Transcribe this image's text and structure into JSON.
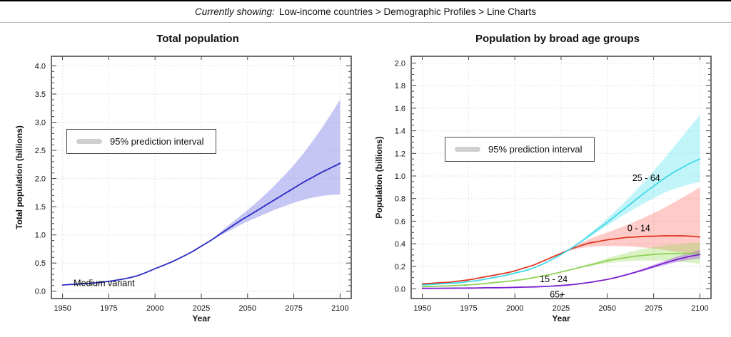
{
  "header": {
    "prefix": "Currently showing:",
    "path": "Low-income countries > Demographic Profiles > Line Charts"
  },
  "colors": {
    "grid": "#dcdcdc",
    "plot_border": "#3f3f3f",
    "text": "#111111",
    "legend_swatch": "#cfcfcf",
    "total_line": "#2a2ac4",
    "age_0_14_line": "#e03522",
    "age_15_24_line": "#8fd257",
    "age_25_64_line": "#3fd8e8",
    "age_65_line": "#7a1fd0"
  },
  "chart_data": [
    {
      "type": "line",
      "title": "Total population",
      "xlabel": "Year",
      "ylabel": "Total population (billions)",
      "legend": "95% prediction interval",
      "legend_position": "upper-left-area",
      "grid": true,
      "xlim": [
        1944,
        2106
      ],
      "ylim": [
        -0.13,
        4.17
      ],
      "x_ticks": [
        1950,
        1975,
        2000,
        2025,
        2050,
        2075,
        2100
      ],
      "y_ticks": [
        0,
        0.5,
        1.0,
        1.5,
        2.0,
        2.5,
        3.0,
        3.5,
        4.0
      ],
      "y_minor_step": 0.1,
      "tick_decimals": 1,
      "x": [
        1950,
        1955,
        1960,
        1965,
        1970,
        1975,
        1980,
        1985,
        1990,
        1995,
        2000,
        2005,
        2010,
        2015,
        2020,
        2025,
        2030,
        2035,
        2040,
        2045,
        2050,
        2055,
        2060,
        2065,
        2070,
        2075,
        2080,
        2085,
        2090,
        2095,
        2100
      ],
      "annotations": [
        {
          "text": "Medium variant",
          "x": 1956,
          "y": 0.145,
          "anchor": "start"
        }
      ],
      "series": [
        {
          "name": "Medium variant",
          "color": "#2a2ac4",
          "band_color": "#8080e8",
          "band_opacity": 0.45,
          "values": [
            0.11,
            0.12,
            0.13,
            0.14,
            0.155,
            0.175,
            0.2,
            0.23,
            0.27,
            0.33,
            0.4,
            0.465,
            0.535,
            0.615,
            0.7,
            0.8,
            0.9,
            1.01,
            1.12,
            1.23,
            1.33,
            1.43,
            1.53,
            1.63,
            1.73,
            1.83,
            1.93,
            2.02,
            2.11,
            2.19,
            2.27
          ],
          "band": {
            "x": [
              2030,
              2035,
              2040,
              2045,
              2050,
              2055,
              2060,
              2065,
              2070,
              2075,
              2080,
              2085,
              2090,
              2095,
              2100
            ],
            "lower": [
              0.9,
              0.985,
              1.07,
              1.16,
              1.24,
              1.31,
              1.38,
              1.45,
              1.51,
              1.57,
              1.62,
              1.66,
              1.69,
              1.71,
              1.72
            ],
            "upper": [
              0.9,
              1.04,
              1.18,
              1.31,
              1.44,
              1.58,
              1.73,
              1.89,
              2.06,
              2.24,
              2.44,
              2.66,
              2.89,
              3.14,
              3.4
            ]
          }
        }
      ]
    },
    {
      "type": "line",
      "title": "Population by broad age groups",
      "xlabel": "Year",
      "ylabel": "Population (billions)",
      "legend": "95% prediction interval",
      "legend_position": "upper-left-area",
      "grid": true,
      "xlim": [
        1944,
        2106
      ],
      "ylim": [
        -0.085,
        2.06
      ],
      "x_ticks": [
        1950,
        1975,
        2000,
        2025,
        2050,
        2075,
        2100
      ],
      "y_ticks": [
        0,
        0.2,
        0.4,
        0.6,
        0.8,
        1.0,
        1.2,
        1.4,
        1.6,
        1.8,
        2.0
      ],
      "y_minor_step": 0.05,
      "tick_decimals": 1,
      "x": [
        1950,
        1955,
        1960,
        1965,
        1970,
        1975,
        1980,
        1985,
        1990,
        1995,
        2000,
        2005,
        2010,
        2015,
        2020,
        2025,
        2030,
        2035,
        2040,
        2045,
        2050,
        2055,
        2060,
        2065,
        2070,
        2075,
        2080,
        2085,
        2090,
        2095,
        2100
      ],
      "annotations": [
        {
          "text": "25 - 64",
          "x": 2071,
          "y": 0.98,
          "anchor": "middle"
        },
        {
          "text": "0 - 14",
          "x": 2067,
          "y": 0.535,
          "anchor": "middle"
        },
        {
          "text": "15 - 24",
          "x": 2021,
          "y": 0.085,
          "anchor": "middle"
        },
        {
          "text": "65+",
          "x": 2023,
          "y": -0.05,
          "anchor": "middle"
        }
      ],
      "series": [
        {
          "name": "0 - 14",
          "color": "#e03522",
          "band_color": "#ff4438",
          "band_opacity": 0.28,
          "values": [
            0.045,
            0.05,
            0.055,
            0.06,
            0.07,
            0.08,
            0.095,
            0.11,
            0.125,
            0.14,
            0.16,
            0.185,
            0.21,
            0.245,
            0.28,
            0.315,
            0.35,
            0.38,
            0.405,
            0.42,
            0.435,
            0.445,
            0.455,
            0.46,
            0.465,
            0.467,
            0.47,
            0.47,
            0.47,
            0.467,
            0.46
          ],
          "band": {
            "x": [
              2030,
              2035,
              2040,
              2045,
              2050,
              2055,
              2060,
              2065,
              2070,
              2075,
              2080,
              2085,
              2090,
              2095,
              2100
            ],
            "lower": [
              0.345,
              0.36,
              0.372,
              0.378,
              0.38,
              0.38,
              0.378,
              0.373,
              0.366,
              0.357,
              0.347,
              0.336,
              0.325,
              0.313,
              0.3
            ],
            "upper": [
              0.355,
              0.4,
              0.44,
              0.472,
              0.5,
              0.53,
              0.562,
              0.596,
              0.632,
              0.67,
              0.712,
              0.757,
              0.803,
              0.85,
              0.9
            ]
          }
        },
        {
          "name": "25 - 64",
          "color": "#3fd8e8",
          "band_color": "#40e0ee",
          "band_opacity": 0.32,
          "values": [
            0.035,
            0.04,
            0.045,
            0.05,
            0.055,
            0.065,
            0.075,
            0.09,
            0.105,
            0.12,
            0.14,
            0.16,
            0.185,
            0.22,
            0.26,
            0.305,
            0.355,
            0.41,
            0.47,
            0.53,
            0.59,
            0.655,
            0.72,
            0.785,
            0.85,
            0.91,
            0.97,
            1.025,
            1.07,
            1.115,
            1.15
          ],
          "band": {
            "x": [
              2035,
              2040,
              2045,
              2050,
              2055,
              2060,
              2065,
              2070,
              2075,
              2080,
              2085,
              2090,
              2095,
              2100
            ],
            "lower": [
              0.405,
              0.455,
              0.51,
              0.56,
              0.615,
              0.665,
              0.715,
              0.76,
              0.805,
              0.845,
              0.88,
              0.905,
              0.93,
              0.945
            ],
            "upper": [
              0.415,
              0.485,
              0.555,
              0.625,
              0.7,
              0.78,
              0.865,
              0.95,
              1.045,
              1.14,
              1.24,
              1.34,
              1.44,
              1.54
            ]
          }
        },
        {
          "name": "15 - 24",
          "color": "#8fd257",
          "band_color": "#90d84d",
          "band_opacity": 0.33,
          "values": [
            0.02,
            0.022,
            0.025,
            0.028,
            0.032,
            0.036,
            0.042,
            0.05,
            0.058,
            0.066,
            0.075,
            0.085,
            0.1,
            0.115,
            0.13,
            0.15,
            0.17,
            0.19,
            0.21,
            0.23,
            0.25,
            0.265,
            0.278,
            0.29,
            0.298,
            0.305,
            0.31,
            0.313,
            0.315,
            0.315,
            0.31
          ],
          "band": {
            "x": [
              2035,
              2040,
              2045,
              2050,
              2055,
              2060,
              2065,
              2070,
              2075,
              2080,
              2085,
              2090,
              2095,
              2100
            ],
            "lower": [
              0.185,
              0.2,
              0.215,
              0.228,
              0.238,
              0.245,
              0.25,
              0.252,
              0.252,
              0.25,
              0.246,
              0.24,
              0.232,
              0.222
            ],
            "upper": [
              0.195,
              0.22,
              0.245,
              0.272,
              0.295,
              0.318,
              0.338,
              0.355,
              0.37,
              0.383,
              0.393,
              0.4,
              0.407,
              0.41
            ]
          }
        },
        {
          "name": "65+",
          "color": "#7a1fd0",
          "band_color": "#9b4ae0",
          "band_opacity": 0.38,
          "values": [
            0.005,
            0.0055,
            0.006,
            0.0065,
            0.007,
            0.008,
            0.009,
            0.01,
            0.011,
            0.012,
            0.014,
            0.016,
            0.018,
            0.021,
            0.025,
            0.03,
            0.037,
            0.046,
            0.057,
            0.07,
            0.085,
            0.103,
            0.124,
            0.147,
            0.172,
            0.198,
            0.224,
            0.249,
            0.271,
            0.29,
            0.305
          ],
          "band": {
            "x": [
              2050,
              2055,
              2060,
              2065,
              2070,
              2075,
              2080,
              2085,
              2090,
              2095,
              2100
            ],
            "lower": [
              0.082,
              0.099,
              0.118,
              0.139,
              0.161,
              0.184,
              0.207,
              0.228,
              0.246,
              0.259,
              0.268
            ],
            "upper": [
              0.088,
              0.108,
              0.131,
              0.156,
              0.184,
              0.213,
              0.243,
              0.272,
              0.298,
              0.322,
              0.344
            ]
          }
        }
      ]
    }
  ]
}
